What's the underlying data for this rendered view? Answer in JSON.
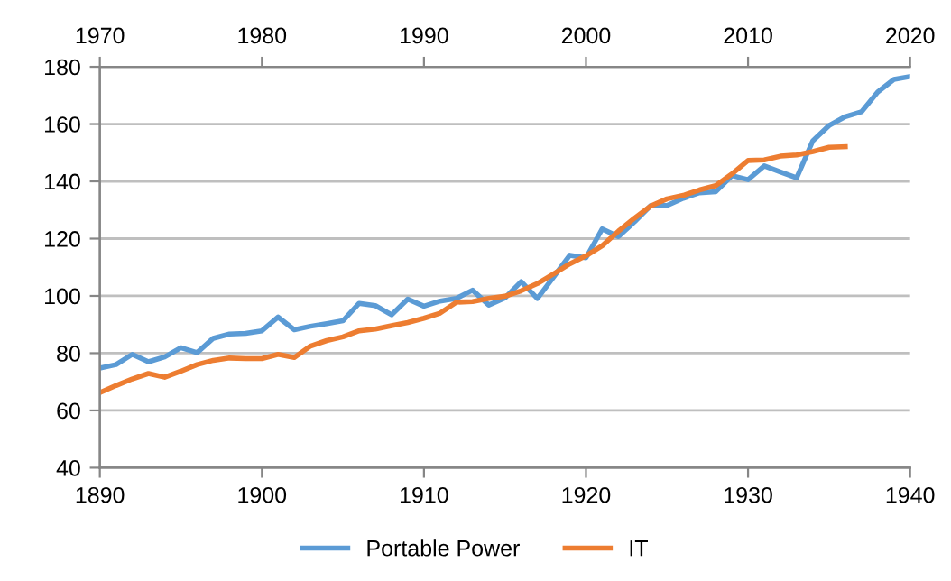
{
  "chart_data": {
    "type": "line",
    "xlim": [
      1890,
      1940
    ],
    "xticks": [
      1890,
      1900,
      1910,
      1920,
      1930,
      1940
    ],
    "x2lim": [
      1970,
      2020
    ],
    "x2ticks": [
      1970,
      1980,
      1990,
      2000,
      2010,
      2020
    ],
    "ylim": [
      40,
      180
    ],
    "yticks": [
      40,
      60,
      80,
      100,
      120,
      140,
      160,
      180
    ],
    "grid": "y",
    "legend": "bottom",
    "marker": "none",
    "line_style": "solid",
    "series": [
      {
        "name": "Portable Power",
        "color": "#5b9bd5",
        "x": [
          1890,
          1891,
          1892,
          1893,
          1894,
          1895,
          1896,
          1897,
          1898,
          1899,
          1900,
          1901,
          1902,
          1903,
          1904,
          1905,
          1906,
          1907,
          1908,
          1909,
          1910,
          1911,
          1912,
          1913,
          1914,
          1915,
          1916,
          1917,
          1918,
          1919,
          1920,
          1921,
          1922,
          1923,
          1924,
          1925,
          1926,
          1927,
          1928,
          1929,
          1930,
          1931,
          1932,
          1933,
          1934,
          1935,
          1936,
          1937,
          1938,
          1939,
          1940
        ],
        "values": [
          74.8,
          76,
          79.6,
          77,
          78.7,
          81.9,
          80.2,
          85.2,
          86.7,
          86.9,
          87.8,
          92.6,
          88.2,
          89.4,
          90.3,
          91.3,
          97.4,
          96.6,
          93.4,
          98.9,
          96.4,
          98.2,
          99.1,
          102,
          96.8,
          99.3,
          105,
          99.1,
          106.6,
          114.2,
          113.3,
          123.4,
          120.7,
          125.9,
          131.6,
          131.6,
          134.1,
          136,
          136.4,
          142,
          140.6,
          145.4,
          143.3,
          141.2,
          154.2,
          159.5,
          162.6,
          164.3,
          171.2,
          175.6,
          176.6
        ]
      },
      {
        "name": "IT",
        "color": "#ed7d31",
        "axis": "x2",
        "x": [
          1970,
          1971,
          1972,
          1973,
          1974,
          1975,
          1976,
          1977,
          1978,
          1979,
          1980,
          1981,
          1982,
          1983,
          1984,
          1985,
          1986,
          1987,
          1988,
          1989,
          1990,
          1991,
          1992,
          1993,
          1994,
          1995,
          1996,
          1997,
          1998,
          1999,
          2000,
          2001,
          2002,
          2003,
          2004,
          2005,
          2006,
          2007,
          2008,
          2009,
          2010,
          2011,
          2012,
          2013,
          2014,
          2015,
          2016
        ],
        "values": [
          66.2,
          68.7,
          71,
          72.9,
          71.6,
          73.7,
          76,
          77.5,
          78.3,
          78.1,
          78.1,
          79.6,
          78.5,
          82.5,
          84.4,
          85.7,
          87.8,
          88.4,
          89.6,
          90.7,
          92.2,
          94,
          97.8,
          98,
          99.1,
          99.9,
          101.8,
          104.3,
          107.7,
          111.2,
          114,
          117.5,
          122.6,
          127.2,
          131.4,
          133.9,
          135.1,
          137,
          138.5,
          142.6,
          147.3,
          147.5,
          148.8,
          149.2,
          150.4,
          151.9,
          152.1
        ]
      }
    ]
  }
}
